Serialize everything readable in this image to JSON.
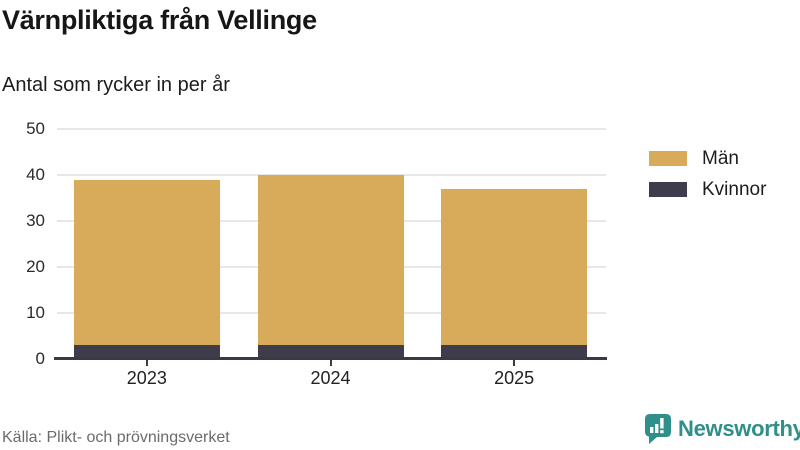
{
  "header": {
    "title": "Värnpliktiga från Vellinge",
    "subtitle": "Antal som rycker in per år"
  },
  "chart_data": {
    "type": "bar",
    "stacked": true,
    "title": "Värnpliktiga från Vellinge",
    "subtitle": "Antal som rycker in per år",
    "xlabel": "",
    "ylabel": "",
    "categories": [
      "2023",
      "2024",
      "2025"
    ],
    "series": [
      {
        "name": "Kvinnor",
        "color": "#3f3c4c",
        "values": [
          3,
          3,
          3
        ]
      },
      {
        "name": "Män",
        "color": "#d8ab5a",
        "values": [
          36,
          37,
          34
        ]
      }
    ],
    "stack_totals": [
      39,
      40,
      37
    ],
    "ylim": [
      0,
      50
    ],
    "yticks": [
      0,
      10,
      20,
      30,
      40,
      50
    ],
    "grid": true,
    "legend_position": "right",
    "legend": [
      {
        "label": "Män",
        "color": "#d8ab5a"
      },
      {
        "label": "Kvinnor",
        "color": "#3f3c4c"
      }
    ]
  },
  "footer": {
    "source": "Källa: Plikt- och prövningsverket",
    "brand": "Newsworthy"
  },
  "colors": {
    "men_bar": "#d8ab5a",
    "women_bar": "#3f3c4c",
    "axis": "#3a3a45",
    "gridline": "#e7e7e7",
    "brand_teal": "#2f8f8a",
    "source_gray": "#6b6b6b",
    "title_text": "#161616"
  }
}
